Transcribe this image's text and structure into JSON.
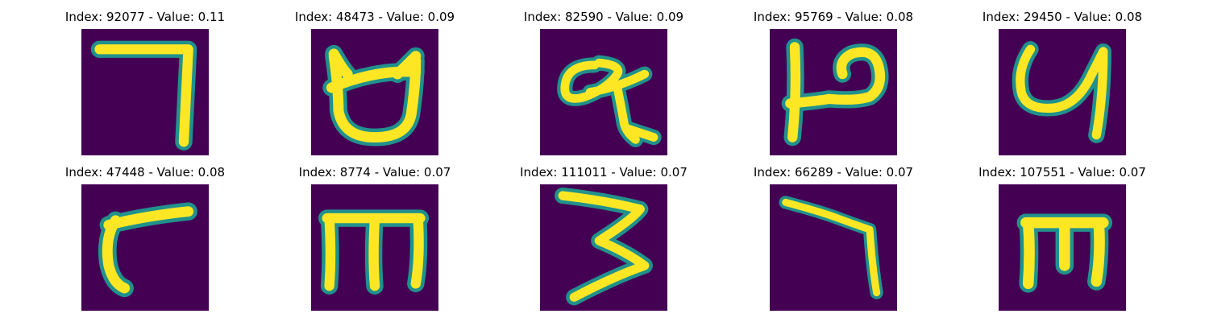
{
  "colors": {
    "background": "#440154",
    "stroke_edge": "#21918c",
    "stroke_core": "#fde725"
  },
  "panels": [
    {
      "title": "Index: 92077 - Value: 0.11",
      "glyph": "seven-shape"
    },
    {
      "title": "Index: 48473 - Value: 0.09",
      "glyph": "cup-shape"
    },
    {
      "title": "Index: 82590 - Value: 0.09",
      "glyph": "loop-with-tail-shape"
    },
    {
      "title": "Index: 95769 - Value: 0.08",
      "glyph": "h-shape"
    },
    {
      "title": "Index: 29450 - Value: 0.08",
      "glyph": "y-shape"
    },
    {
      "title": "Index: 47448 - Value: 0.08",
      "glyph": "r-shape"
    },
    {
      "title": "Index: 8774 - Value: 0.07",
      "glyph": "m-shape"
    },
    {
      "title": "Index: 111011 - Value: 0.07",
      "glyph": "three-shape"
    },
    {
      "title": "Index: 66289 - Value: 0.07",
      "glyph": "seven-shape"
    },
    {
      "title": "Index: 107551 - Value: 0.07",
      "glyph": "m-shape"
    }
  ]
}
